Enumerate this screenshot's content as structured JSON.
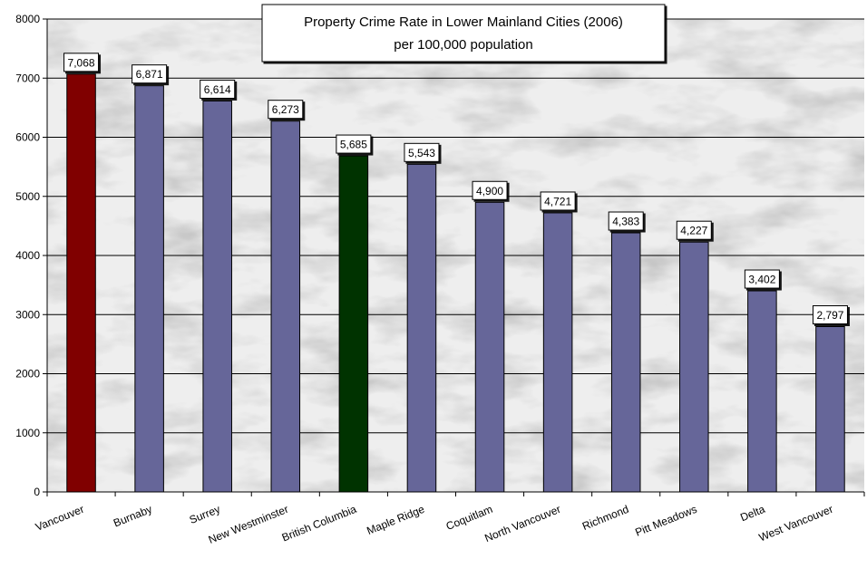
{
  "colors": {
    "default_bar": "#666699",
    "highlight_vancouver": "#800000",
    "highlight_bc": "#003300",
    "gridline": "#000000",
    "label_box_bg": "#ffffff"
  },
  "chart_data": {
    "type": "bar",
    "title": "Property Crime Rate in Lower Mainland Cities (2006)",
    "subtitle": "per 100,000 population",
    "xlabel": "",
    "ylabel": "",
    "ylim": [
      0,
      8000
    ],
    "yticks": [
      0,
      1000,
      2000,
      3000,
      4000,
      5000,
      6000,
      7000,
      8000
    ],
    "grid": true,
    "legend": "none",
    "categories": [
      "Vancouver",
      "Burnaby",
      "Surrey",
      "New Westminster",
      "British Columbia",
      "Maple Ridge",
      "Coquitlam",
      "North Vancouver",
      "Richmond",
      "Pitt Meadows",
      "Delta",
      "West Vancouver"
    ],
    "values": [
      7068,
      6871,
      6614,
      6273,
      5685,
      5543,
      4900,
      4721,
      4383,
      4227,
      3402,
      2797
    ],
    "value_labels": [
      "7,068",
      "6,871",
      "6,614",
      "6,273",
      "5,685",
      "5,543",
      "4,900",
      "4,721",
      "4,383",
      "4,227",
      "3,402",
      "2,797"
    ],
    "bar_colors": [
      "#800000",
      "#666699",
      "#666699",
      "#666699",
      "#003300",
      "#666699",
      "#666699",
      "#666699",
      "#666699",
      "#666699",
      "#666699",
      "#666699"
    ]
  }
}
